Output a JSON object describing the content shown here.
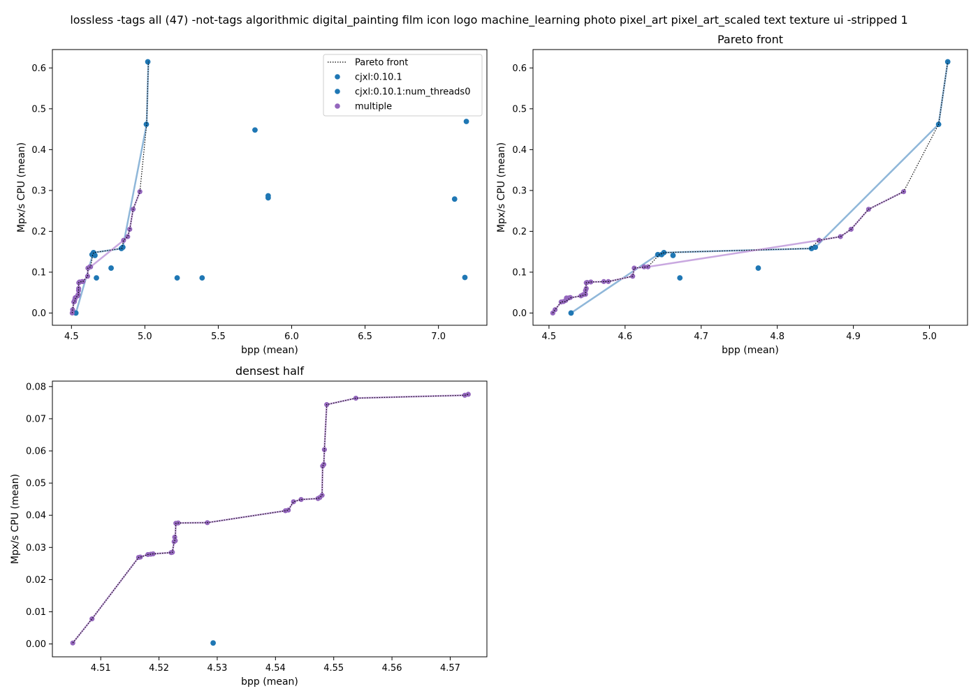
{
  "figure": {
    "title": "lossless -tags all (47) -not-tags algorithmic digital_painting film icon logo machine_learning photo pixel_art pixel_art_scaled text texture ui -stripped 1"
  },
  "legend": {
    "placement": "top-right of first panel",
    "items": [
      {
        "label": "Pareto front",
        "kind": "line",
        "style": "dotted",
        "color": "#000000"
      },
      {
        "label": "cjxl:0.10.1",
        "kind": "marker",
        "color": "#1f77b4"
      },
      {
        "label": "cjxl:0.10.1:num_threads0",
        "kind": "marker",
        "color": "#1f77b4"
      },
      {
        "label": "multiple",
        "kind": "marker",
        "color": "#9467bd"
      }
    ]
  },
  "colors": {
    "blue": "#1f77b4",
    "purple": "#9467bd",
    "blue_front_line": "#8fb7d9",
    "purple_front_line": "#c9a8e0"
  },
  "chart_data": [
    {
      "type": "scatter",
      "title": "",
      "xlabel": "bpp (mean)",
      "ylabel": "Mpx/s CPU (mean)",
      "xlim": [
        4.37,
        7.33
      ],
      "ylim": [
        -0.03,
        0.645
      ],
      "xticks": [
        4.5,
        5.0,
        5.5,
        6.0,
        6.5,
        7.0
      ],
      "xtick_labels": [
        "4.5",
        "5.0",
        "5.5",
        "6.0",
        "6.5",
        "7.0"
      ],
      "yticks": [
        0.0,
        0.1,
        0.2,
        0.3,
        0.4,
        0.5,
        0.6
      ],
      "ytick_labels": [
        "0.0",
        "0.1",
        "0.2",
        "0.3",
        "0.4",
        "0.5",
        "0.6"
      ],
      "series": [
        {
          "name": "cjxl:0.10.1",
          "color": "#1f77b4",
          "x": [
            4.53,
            4.67,
            4.77,
            5.22,
            5.39,
            5.75,
            5.84,
            5.84,
            7.11,
            7.18,
            7.19,
            4.64,
            4.65,
            4.66,
            4.84,
            4.85,
            5.01,
            5.02
          ],
          "y": [
            0.0,
            0.086,
            0.11,
            0.086,
            0.086,
            0.448,
            0.287,
            0.282,
            0.279,
            0.087,
            0.469,
            0.143,
            0.148,
            0.141,
            0.158,
            0.161,
            0.462,
            0.615
          ]
        },
        {
          "name": "multiple",
          "color": "#9467bd",
          "x": [
            4.505,
            4.508,
            4.516,
            4.52,
            4.522,
            4.525,
            4.528,
            4.542,
            4.545,
            4.548,
            4.549,
            4.55,
            4.555,
            4.572,
            4.578,
            4.61,
            4.612,
            4.625,
            4.63,
            4.855,
            4.883,
            4.897,
            4.92,
            4.966
          ],
          "y": [
            0.0,
            0.008,
            0.027,
            0.028,
            0.032,
            0.037,
            0.038,
            0.042,
            0.045,
            0.055,
            0.06,
            0.074,
            0.076,
            0.077,
            0.077,
            0.09,
            0.11,
            0.113,
            0.113,
            0.178,
            0.187,
            0.205,
            0.254,
            0.297
          ]
        }
      ],
      "pareto_front": {
        "x": [
          4.505,
          4.508,
          4.516,
          4.522,
          4.528,
          4.542,
          4.548,
          4.549,
          4.555,
          4.578,
          4.61,
          4.612,
          4.63,
          4.645,
          4.652,
          4.843,
          4.855,
          4.883,
          4.897,
          4.92,
          4.966,
          5.012,
          5.024
        ],
        "y": [
          0.0,
          0.008,
          0.027,
          0.028,
          0.037,
          0.042,
          0.045,
          0.074,
          0.076,
          0.077,
          0.09,
          0.11,
          0.113,
          0.143,
          0.148,
          0.158,
          0.178,
          0.187,
          0.205,
          0.254,
          0.297,
          0.462,
          0.615
        ]
      },
      "front_lines": [
        {
          "color": "#8fb7d9",
          "x": [
            4.53,
            4.645,
            4.652,
            4.843,
            4.85,
            5.012,
            5.024
          ],
          "y": [
            0.0,
            0.143,
            0.148,
            0.158,
            0.161,
            0.462,
            0.615
          ]
        },
        {
          "color": "#c9a8e0",
          "x": [
            4.505,
            4.508,
            4.516,
            4.522,
            4.528,
            4.542,
            4.548,
            4.549,
            4.555,
            4.578,
            4.61,
            4.612,
            4.63,
            4.855,
            4.883,
            4.897,
            4.92,
            4.966
          ],
          "y": [
            0.0,
            0.008,
            0.027,
            0.028,
            0.037,
            0.042,
            0.045,
            0.074,
            0.076,
            0.077,
            0.09,
            0.11,
            0.113,
            0.178,
            0.187,
            0.205,
            0.254,
            0.297
          ]
        }
      ]
    },
    {
      "type": "scatter",
      "title": "Pareto front",
      "xlabel": "bpp (mean)",
      "ylabel": "Mpx/s CPU (mean)",
      "xlim": [
        4.479,
        5.05
      ],
      "ylim": [
        -0.03,
        0.645
      ],
      "xticks": [
        4.5,
        4.6,
        4.7,
        4.8,
        4.9,
        5.0
      ],
      "xtick_labels": [
        "4.5",
        "4.6",
        "4.7",
        "4.8",
        "4.9",
        "5.0"
      ],
      "yticks": [
        0.0,
        0.1,
        0.2,
        0.3,
        0.4,
        0.5,
        0.6
      ],
      "ytick_labels": [
        "0.0",
        "0.1",
        "0.2",
        "0.3",
        "0.4",
        "0.5",
        "0.6"
      ],
      "series": [
        {
          "name": "cjxl:0.10.1",
          "color": "#1f77b4",
          "x": [
            4.529,
            4.643,
            4.648,
            4.651,
            4.663,
            4.672,
            4.775,
            4.845,
            4.85,
            5.012,
            5.024
          ],
          "y": [
            0.0,
            0.143,
            0.143,
            0.148,
            0.141,
            0.086,
            0.11,
            0.158,
            0.161,
            0.462,
            0.615
          ]
        },
        {
          "name": "multiple",
          "color": "#9467bd",
          "x": [
            4.505,
            4.508,
            4.516,
            4.519,
            4.522,
            4.523,
            4.526,
            4.528,
            4.542,
            4.545,
            4.548,
            4.548,
            4.549,
            4.549,
            4.55,
            4.555,
            4.572,
            4.578,
            4.61,
            4.612,
            4.625,
            4.63,
            4.855,
            4.883,
            4.897,
            4.92,
            4.966
          ],
          "y": [
            0.0,
            0.008,
            0.027,
            0.028,
            0.031,
            0.037,
            0.037,
            0.038,
            0.042,
            0.045,
            0.046,
            0.055,
            0.06,
            0.074,
            0.075,
            0.076,
            0.077,
            0.077,
            0.09,
            0.11,
            0.113,
            0.113,
            0.178,
            0.187,
            0.205,
            0.254,
            0.297
          ]
        }
      ],
      "pareto_front": {
        "x": [
          4.505,
          4.508,
          4.516,
          4.522,
          4.528,
          4.542,
          4.548,
          4.549,
          4.555,
          4.578,
          4.61,
          4.612,
          4.63,
          4.645,
          4.652,
          4.843,
          4.855,
          4.883,
          4.897,
          4.92,
          4.966,
          5.012,
          5.024
        ],
        "y": [
          0.0,
          0.008,
          0.027,
          0.028,
          0.037,
          0.042,
          0.045,
          0.074,
          0.076,
          0.077,
          0.09,
          0.11,
          0.113,
          0.143,
          0.148,
          0.158,
          0.178,
          0.187,
          0.205,
          0.254,
          0.297,
          0.462,
          0.615
        ]
      },
      "front_lines": [
        {
          "color": "#8fb7d9",
          "x": [
            4.529,
            4.643,
            4.651,
            4.845,
            4.85,
            5.012,
            5.024
          ],
          "y": [
            0.0,
            0.143,
            0.148,
            0.158,
            0.161,
            0.462,
            0.615
          ]
        },
        {
          "color": "#c9a8e0",
          "x": [
            4.505,
            4.508,
            4.516,
            4.522,
            4.528,
            4.542,
            4.548,
            4.549,
            4.555,
            4.578,
            4.61,
            4.612,
            4.63,
            4.855,
            4.883,
            4.897,
            4.92,
            4.966
          ],
          "y": [
            0.0,
            0.008,
            0.027,
            0.028,
            0.037,
            0.042,
            0.045,
            0.074,
            0.076,
            0.077,
            0.09,
            0.11,
            0.113,
            0.178,
            0.187,
            0.205,
            0.254,
            0.297
          ]
        }
      ]
    },
    {
      "type": "scatter",
      "title": "densest half",
      "xlabel": "bpp (mean)",
      "ylabel": "Mpx/s CPU (mean)",
      "xlim": [
        4.5017,
        4.5763
      ],
      "ylim": [
        -0.004,
        0.0817
      ],
      "xticks": [
        4.51,
        4.52,
        4.53,
        4.54,
        4.55,
        4.56,
        4.57
      ],
      "xtick_labels": [
        "4.51",
        "4.52",
        "4.53",
        "4.54",
        "4.55",
        "4.56",
        "4.57"
      ],
      "yticks": [
        0.0,
        0.01,
        0.02,
        0.03,
        0.04,
        0.05,
        0.06,
        0.07,
        0.08
      ],
      "ytick_labels": [
        "0.00",
        "0.01",
        "0.02",
        "0.03",
        "0.04",
        "0.05",
        "0.06",
        "0.07",
        "0.08"
      ],
      "series": [
        {
          "name": "cjxl:0.10.1",
          "color": "#1f77b4",
          "x": [
            4.5293
          ],
          "y": [
            0.0003
          ]
        },
        {
          "name": "multiple",
          "color": "#9467bd",
          "x": [
            4.5052,
            4.5085,
            4.5165,
            4.5168,
            4.5181,
            4.5186,
            4.519,
            4.5221,
            4.5223,
            4.5226,
            4.5227,
            4.5228,
            4.5229,
            4.5233,
            4.5283,
            4.5417,
            4.5422,
            4.5431,
            4.5444,
            4.5473,
            4.5476,
            4.548,
            4.5481,
            4.5483,
            4.5484,
            4.5488,
            4.5538,
            4.5725,
            4.5731
          ],
          "y": [
            0.0003,
            0.0078,
            0.0269,
            0.027,
            0.0278,
            0.0279,
            0.028,
            0.0284,
            0.0285,
            0.0318,
            0.0332,
            0.0321,
            0.0375,
            0.0376,
            0.0377,
            0.0414,
            0.0416,
            0.0442,
            0.0449,
            0.0452,
            0.0455,
            0.0462,
            0.0553,
            0.0558,
            0.0604,
            0.0744,
            0.0764,
            0.0773,
            0.0776
          ]
        }
      ],
      "pareto_front": {
        "x": [
          4.5052,
          4.5085,
          4.5165,
          4.5168,
          4.5181,
          4.5186,
          4.519,
          4.5221,
          4.5223,
          4.5226,
          4.5227,
          4.5228,
          4.5229,
          4.5233,
          4.5283,
          4.5417,
          4.5422,
          4.5431,
          4.5444,
          4.5473,
          4.5476,
          4.548,
          4.5481,
          4.5483,
          4.5484,
          4.5488,
          4.5538,
          4.5725,
          4.5731
        ],
        "y": [
          0.0003,
          0.0078,
          0.0269,
          0.027,
          0.0278,
          0.0279,
          0.028,
          0.0284,
          0.0285,
          0.0318,
          0.0321,
          0.0332,
          0.0375,
          0.0376,
          0.0377,
          0.0414,
          0.0416,
          0.0442,
          0.0449,
          0.0452,
          0.0455,
          0.0462,
          0.0553,
          0.0558,
          0.0604,
          0.0744,
          0.0764,
          0.0773,
          0.0776
        ]
      },
      "front_lines": [
        {
          "color": "#c9a8e0",
          "x": [
            4.5052,
            4.5085,
            4.5165,
            4.5168,
            4.5181,
            4.5186,
            4.519,
            4.5221,
            4.5223,
            4.5226,
            4.5227,
            4.5228,
            4.5229,
            4.5233,
            4.5283,
            4.5417,
            4.5422,
            4.5431,
            4.5444,
            4.5473,
            4.5476,
            4.548,
            4.5481,
            4.5483,
            4.5484,
            4.5488,
            4.5538,
            4.5725,
            4.5731
          ],
          "y": [
            0.0003,
            0.0078,
            0.0269,
            0.027,
            0.0278,
            0.0279,
            0.028,
            0.0284,
            0.0285,
            0.0318,
            0.0321,
            0.0332,
            0.0375,
            0.0376,
            0.0377,
            0.0414,
            0.0416,
            0.0442,
            0.0449,
            0.0452,
            0.0455,
            0.0462,
            0.0553,
            0.0558,
            0.0604,
            0.0744,
            0.0764,
            0.0773,
            0.0776
          ]
        }
      ]
    }
  ]
}
